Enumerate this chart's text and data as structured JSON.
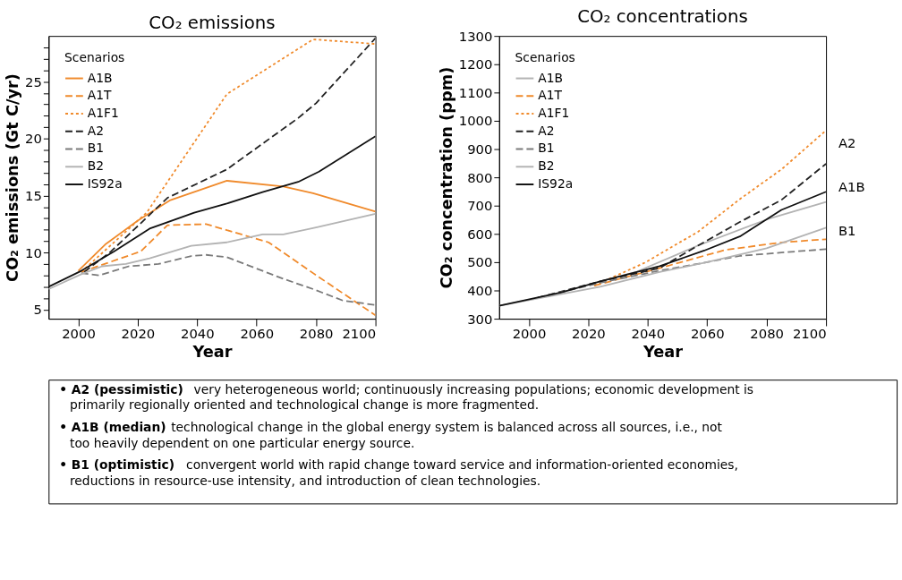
{
  "chart_data": [
    {
      "type": "line",
      "title": "CO₂ emissions",
      "xlabel": "Year",
      "ylabel": "CO₂ emissions (Gt C/yr)",
      "legend_title": "Scenarios",
      "legend": "top left",
      "grid": false,
      "xlim": [
        1990,
        2100
      ],
      "xticks": [
        2000,
        2020,
        2040,
        2060,
        2080,
        2100
      ],
      "ylim": [
        4.2,
        29
      ],
      "yticks": [
        {
          "value": 5,
          "label": "5"
        },
        {
          "value": 6,
          "label": null
        },
        {
          "value": 7,
          "label": null
        },
        {
          "value": 8,
          "label": null
        },
        {
          "value": 9,
          "label": null
        },
        {
          "value": 10,
          "label": "10"
        },
        {
          "value": 11,
          "label": null
        },
        {
          "value": 12,
          "label": null
        },
        {
          "value": 13,
          "label": null
        },
        {
          "value": 14,
          "label": null
        },
        {
          "value": 15,
          "label": "15"
        },
        {
          "value": 16,
          "label": null
        },
        {
          "value": 17,
          "label": null
        },
        {
          "value": 18,
          "label": null
        },
        {
          "value": 19,
          "label": null
        },
        {
          "value": 20,
          "label": "20"
        },
        {
          "value": 21,
          "label": null
        },
        {
          "value": 22,
          "label": null
        },
        {
          "value": 23,
          "label": null
        },
        {
          "value": 24,
          "label": null
        },
        {
          "value": 25,
          "label": "25"
        },
        {
          "value": 26,
          "label": null
        },
        {
          "value": 27,
          "label": null
        },
        {
          "value": 28,
          "label": null
        }
      ],
      "series": [
        {
          "name": "A1B",
          "color": "#f08a2b",
          "line_style": "solid",
          "x": [
            2000,
            2009,
            2020,
            2031,
            2050,
            2069,
            2079,
            2100
          ],
          "values": [
            8.4,
            10.7,
            12.8,
            14.6,
            16.3,
            15.8,
            15.2,
            13.6
          ]
        },
        {
          "name": "A1T",
          "color": "#f08a2b",
          "line_style": "dashed",
          "x": [
            2001,
            2021,
            2030,
            2043,
            2064,
            2079,
            2100
          ],
          "values": [
            8.3,
            10.1,
            12.4,
            12.5,
            10.9,
            8.2,
            4.5
          ]
        },
        {
          "name": "A1F1",
          "color": "#f08a2b",
          "line_style": "dotted",
          "x": [
            2001,
            2023,
            2050,
            2079,
            2100
          ],
          "values": [
            8.3,
            13.5,
            23.9,
            28.7,
            28.3
          ]
        },
        {
          "name": "A2",
          "color": "#222222",
          "line_style": "dashed",
          "x": [
            2002,
            2011,
            2030,
            2050,
            2074,
            2080,
            2100
          ],
          "values": [
            8.3,
            10.1,
            14.8,
            17.3,
            21.8,
            23.1,
            28.8
          ]
        },
        {
          "name": "B1",
          "color": "#7a7a7a",
          "line_style": "dashed",
          "x": [
            2001,
            2007,
            2017,
            2027,
            2038,
            2043,
            2050,
            2069,
            2079,
            2089,
            2100
          ],
          "values": [
            8.2,
            8.0,
            8.8,
            9.0,
            9.7,
            9.8,
            9.6,
            7.7,
            6.8,
            5.8,
            5.4
          ]
        },
        {
          "name": "B2",
          "color": "#b3b3b3",
          "line_style": "solid",
          "x": [
            1990,
            2001,
            2008,
            2016,
            2024,
            2038,
            2050,
            2062,
            2069,
            2080,
            2100
          ],
          "values": [
            6.8,
            8.1,
            8.8,
            9.0,
            9.5,
            10.6,
            10.9,
            11.6,
            11.6,
            12.2,
            13.4
          ]
        },
        {
          "name": "IS92a",
          "color": "#111111",
          "line_style": "solid",
          "x": [
            1990,
            2001,
            2012,
            2024,
            2039,
            2050,
            2062,
            2074,
            2081,
            2100
          ],
          "values": [
            7.0,
            8.4,
            10.1,
            12.1,
            13.5,
            14.3,
            15.3,
            16.2,
            17.1,
            20.2
          ]
        }
      ]
    },
    {
      "type": "line",
      "title": "CO₂ concentrations",
      "xlabel": "Year",
      "ylabel": "CO₂ concentration (ppm)",
      "legend_title": "Scenarios",
      "legend": "top left",
      "grid": false,
      "xlim": [
        1990,
        2100
      ],
      "xticks": [
        2000,
        2020,
        2040,
        2060,
        2080,
        2100
      ],
      "ylim": [
        300,
        1300
      ],
      "yticks": [
        300,
        400,
        500,
        600,
        700,
        800,
        900,
        1000,
        1100,
        1200,
        1300
      ],
      "series": [
        {
          "name": "A1B",
          "color": "#b3b3b3",
          "line_style": "solid",
          "x": [
            2024,
            2036,
            2057,
            2080,
            2100
          ],
          "values": [
            432,
            465,
            559,
            651,
            713
          ]
        },
        {
          "name": "A1T",
          "color": "#f08a2b",
          "line_style": "dashed",
          "x": [
            2022,
            2044,
            2066,
            2085,
            2100
          ],
          "values": [
            417,
            479,
            543,
            570,
            581
          ]
        },
        {
          "name": "A1F1",
          "color": "#f08a2b",
          "line_style": "dotted",
          "x": [
            2022,
            2039,
            2057,
            2071,
            2085,
            2100
          ],
          "values": [
            417,
            498,
            608,
            723,
            828,
            966
          ]
        },
        {
          "name": "A2",
          "color": "#222222",
          "line_style": "dashed",
          "x": [
            2003,
            2024,
            2044,
            2057,
            2071,
            2085,
            2100
          ],
          "values": [
            374,
            432,
            479,
            559,
            642,
            720,
            848
          ]
        },
        {
          "name": "B1",
          "color": "#7a7a7a",
          "line_style": "dashed",
          "x": [
            2003,
            2024,
            2044,
            2060,
            2071,
            2085,
            2100
          ],
          "values": [
            374,
            427,
            470,
            500,
            522,
            534,
            546
          ]
        },
        {
          "name": "B2",
          "color": "#b3b3b3",
          "line_style": "solid",
          "x": [
            1990,
            2024,
            2044,
            2060,
            2080,
            2100
          ],
          "values": [
            346,
            413,
            465,
            500,
            549,
            622
          ]
        },
        {
          "name": "IS92a",
          "color": "#111111",
          "line_style": "solid",
          "x": [
            1990,
            2011,
            2024,
            2044,
            2059,
            2071,
            2085,
            2100
          ],
          "values": [
            346,
            393,
            432,
            486,
            541,
            591,
            685,
            749
          ]
        }
      ],
      "annotations": [
        "A2",
        "A1B",
        "B1"
      ]
    },
    {
      "type": "other",
      "annotations": [
        "• A2 (pessimistic) very heterogeneous world; continuously increasing populations; economic development is primarily regionally oriented and technological change is more fragmented.",
        "• A1B (median) technological change in the global energy system is balanced across all sources, i.e., not too heavily dependent on one particular energy source.",
        "• B1 (optimistic) convergent world with rapid change toward service and information-oriented economies, reductions in resource-use intensity, and introduction of clean technologies."
      ]
    }
  ]
}
